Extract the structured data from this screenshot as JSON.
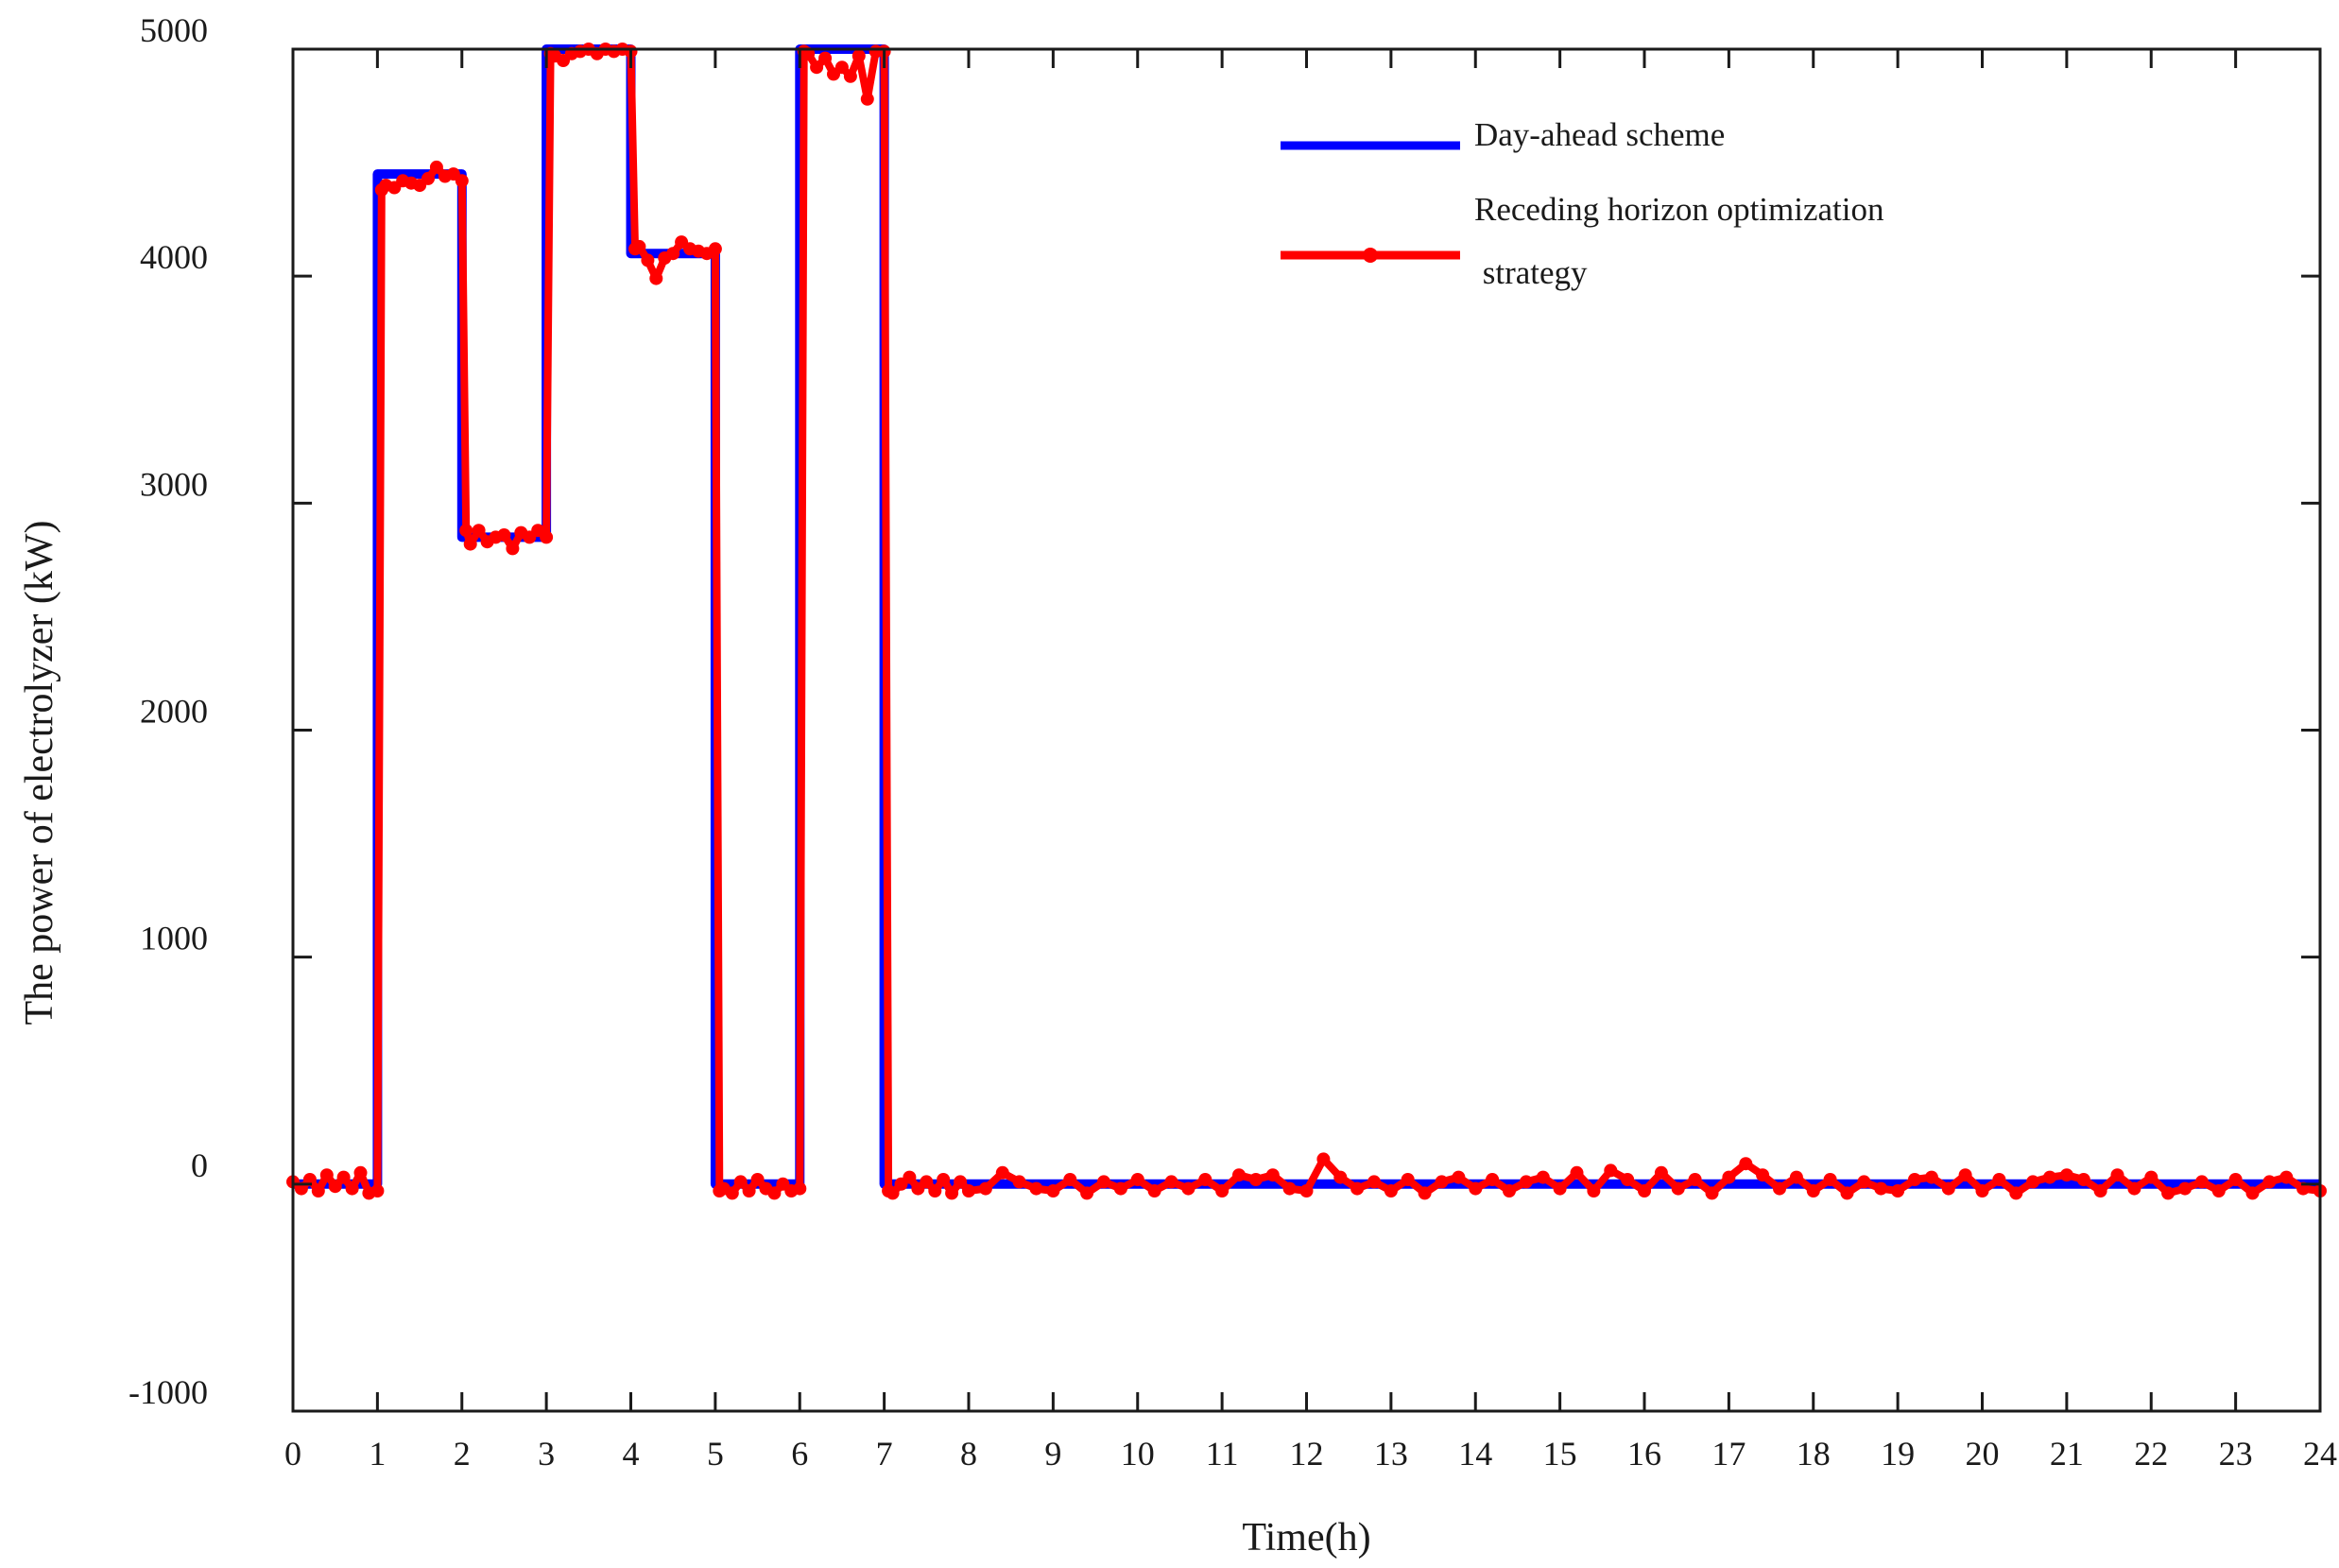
{
  "chart_data": {
    "type": "line",
    "title": "",
    "xlabel": "Time(h)",
    "ylabel": "The power of electrolyzer (kW)",
    "xlim": [
      0,
      24
    ],
    "ylim": [
      -1000,
      5000
    ],
    "x_ticks": [
      0,
      1,
      2,
      3,
      4,
      5,
      6,
      7,
      8,
      9,
      10,
      11,
      12,
      13,
      14,
      15,
      16,
      17,
      18,
      19,
      20,
      21,
      22,
      23,
      24
    ],
    "y_ticks": [
      -1000,
      0,
      1000,
      2000,
      3000,
      4000,
      5000
    ],
    "x_tick_labels": [
      "0",
      "1",
      "2",
      "3",
      "4",
      "5",
      "6",
      "7",
      "8",
      "9",
      "10",
      "11",
      "12",
      "13",
      "14",
      "15",
      "16",
      "17",
      "18",
      "19",
      "20",
      "21",
      "22",
      "23",
      "24"
    ],
    "y_tick_labels": [
      "-1000",
      "0",
      "1000",
      "2000",
      "3000",
      "4000",
      "5000"
    ],
    "grid": false,
    "legend_position": "top-right",
    "legend": [
      "Day-ahead scheme",
      "Receding horizon optimization",
      " strategy"
    ],
    "series": [
      {
        "name": "Day-ahead scheme",
        "color": "#0000ff",
        "marker": "none",
        "x": [
          0.0,
          1.0,
          1.0,
          2.0,
          2.0,
          3.0,
          3.0,
          4.0,
          4.0,
          5.0,
          5.0,
          6.0,
          6.0,
          7.0,
          7.0,
          24.0
        ],
        "y": [
          0,
          0,
          4450,
          4450,
          2850,
          2850,
          5000,
          5000,
          4100,
          4100,
          0,
          0,
          5000,
          5000,
          0,
          0
        ]
      },
      {
        "name": "Receding horizon optimization strategy",
        "color": "#ff0000",
        "marker": "circle",
        "x": [
          0.0,
          0.1,
          0.2,
          0.3,
          0.4,
          0.5,
          0.6,
          0.7,
          0.8,
          0.9,
          1.0,
          1.05,
          1.1,
          1.2,
          1.3,
          1.4,
          1.5,
          1.6,
          1.7,
          1.8,
          1.9,
          2.0,
          2.05,
          2.1,
          2.2,
          2.3,
          2.4,
          2.5,
          2.6,
          2.7,
          2.8,
          2.9,
          3.0,
          3.05,
          3.1,
          3.2,
          3.3,
          3.4,
          3.5,
          3.6,
          3.7,
          3.8,
          3.9,
          4.0,
          4.05,
          4.1,
          4.2,
          4.3,
          4.4,
          4.5,
          4.6,
          4.7,
          4.8,
          4.9,
          5.0,
          5.05,
          5.1,
          5.2,
          5.3,
          5.4,
          5.5,
          5.6,
          5.7,
          5.8,
          5.9,
          6.0,
          6.05,
          6.1,
          6.2,
          6.3,
          6.4,
          6.5,
          6.6,
          6.7,
          6.8,
          6.9,
          7.0,
          7.05,
          7.1,
          7.2,
          7.3,
          7.4,
          7.5,
          7.6,
          7.7,
          7.8,
          7.9,
          8.0,
          8.2,
          8.4,
          8.6,
          8.8,
          9.0,
          9.2,
          9.4,
          9.6,
          9.8,
          10.0,
          10.2,
          10.4,
          10.6,
          10.8,
          11.0,
          11.2,
          11.4,
          11.6,
          11.8,
          12.0,
          12.2,
          12.4,
          12.6,
          12.8,
          13.0,
          13.2,
          13.4,
          13.6,
          13.8,
          14.0,
          14.2,
          14.4,
          14.6,
          14.8,
          15.0,
          15.2,
          15.4,
          15.6,
          15.8,
          16.0,
          16.2,
          16.4,
          16.6,
          16.8,
          17.0,
          17.2,
          17.4,
          17.6,
          17.8,
          18.0,
          18.2,
          18.4,
          18.6,
          18.8,
          19.0,
          19.2,
          19.4,
          19.6,
          19.8,
          20.0,
          20.2,
          20.4,
          20.6,
          20.8,
          21.0,
          21.2,
          21.4,
          21.6,
          21.8,
          22.0,
          22.2,
          22.4,
          22.6,
          22.8,
          23.0,
          23.2,
          23.4,
          23.6,
          23.8,
          24.0
        ],
        "y": [
          10,
          -20,
          20,
          -30,
          40,
          -10,
          30,
          -20,
          50,
          -40,
          -30,
          4380,
          4400,
          4390,
          4420,
          4410,
          4400,
          4430,
          4480,
          4440,
          4450,
          4420,
          2880,
          2820,
          2880,
          2830,
          2850,
          2860,
          2800,
          2870,
          2850,
          2880,
          2850,
          4980,
          4970,
          4950,
          4980,
          4990,
          5000,
          4980,
          5000,
          4990,
          5000,
          4990,
          4120,
          4130,
          4070,
          3990,
          4080,
          4100,
          4150,
          4120,
          4110,
          4100,
          4120,
          -30,
          -20,
          -40,
          10,
          -30,
          20,
          -20,
          -40,
          0,
          -30,
          -20,
          4990,
          4980,
          4920,
          4960,
          4890,
          4920,
          4880,
          4970,
          4780,
          4990,
          4990,
          -30,
          -40,
          0,
          30,
          -20,
          10,
          -30,
          20,
          -40,
          10,
          -30,
          -20,
          50,
          10,
          -20,
          -30,
          20,
          -40,
          10,
          -20,
          20,
          -30,
          10,
          -20,
          20,
          -30,
          40,
          20,
          40,
          -20,
          -30,
          110,
          30,
          -20,
          10,
          -30,
          20,
          -40,
          10,
          30,
          -20,
          20,
          -30,
          10,
          30,
          -20,
          50,
          -30,
          60,
          20,
          -30,
          50,
          -20,
          20,
          -40,
          30,
          90,
          40,
          -20,
          30,
          -30,
          20,
          -40,
          10,
          -20,
          -30,
          20,
          30,
          -20,
          40,
          -30,
          20,
          -40,
          10,
          30,
          40,
          20,
          -30,
          40,
          -20,
          30,
          -40,
          -20,
          10,
          -30,
          20,
          -40,
          10,
          30,
          -20,
          -30
        ]
      }
    ]
  }
}
